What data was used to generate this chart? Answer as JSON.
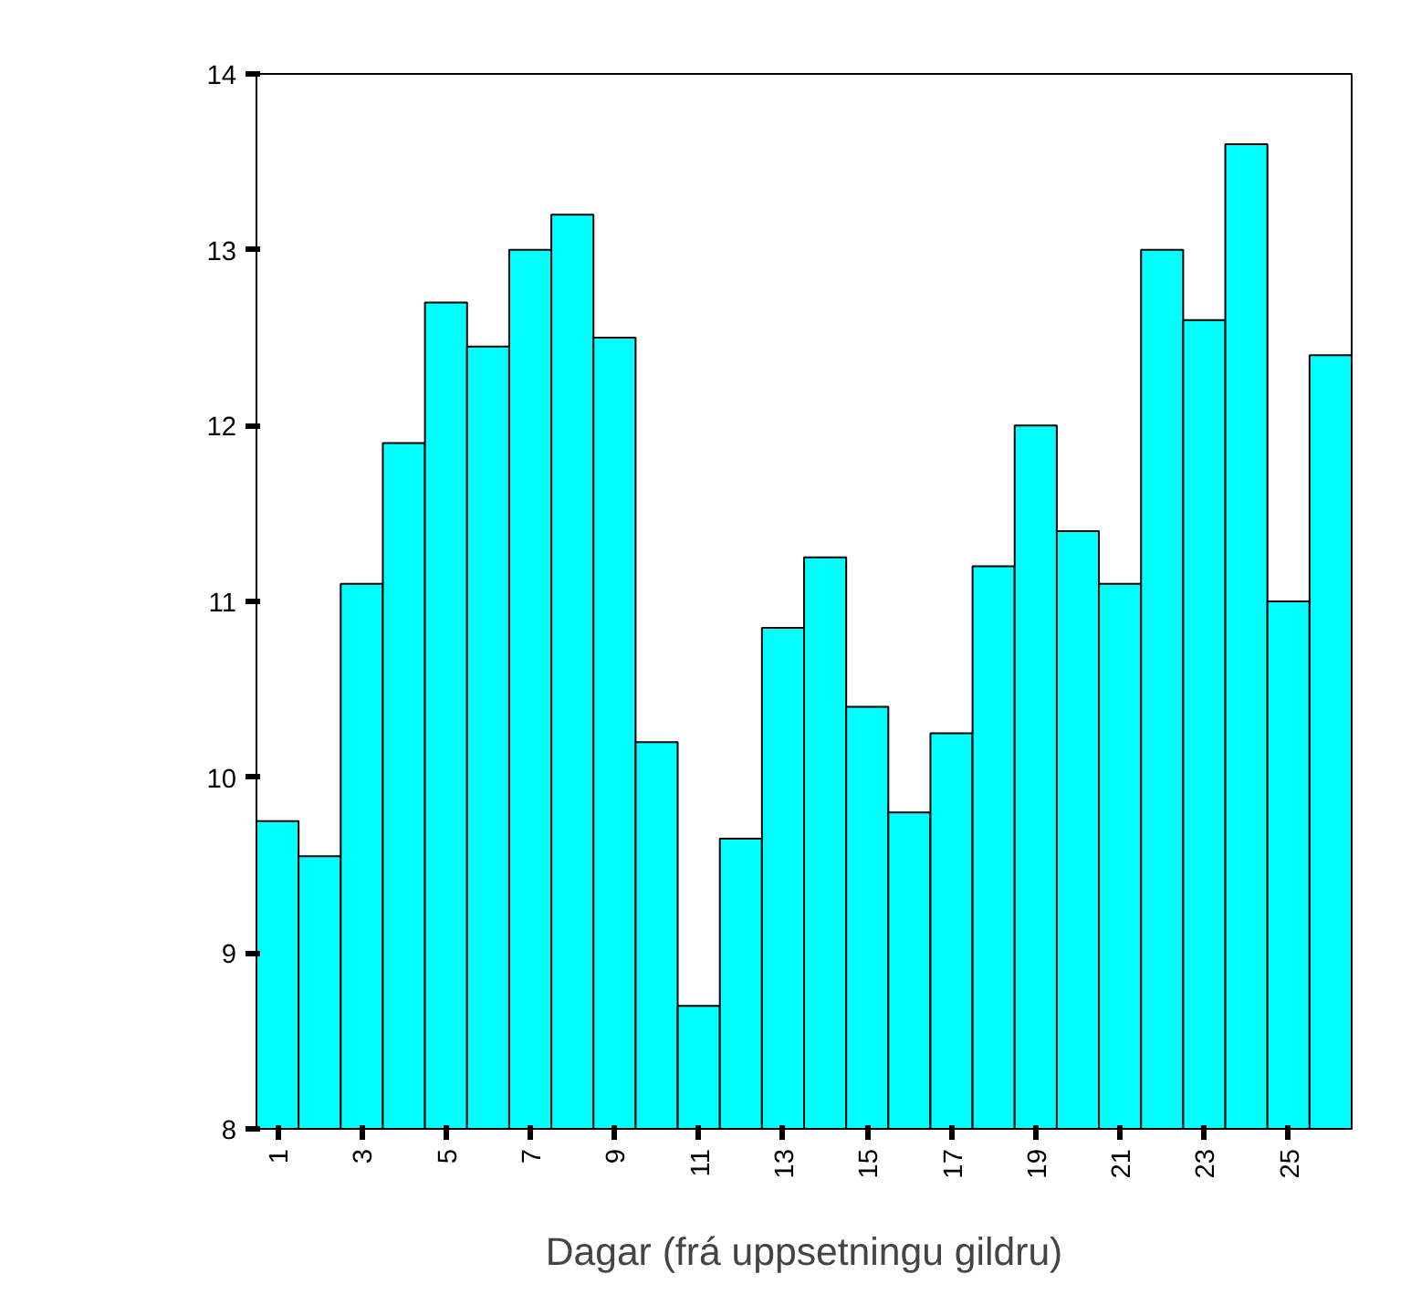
{
  "chart_data": {
    "type": "bar",
    "xlabel": "Dagar (frá uppsetningu gildru)",
    "categories": [
      "1",
      null,
      "3",
      null,
      "5",
      null,
      "7",
      null,
      "9",
      null,
      "11",
      null,
      "13",
      null,
      "15",
      null,
      "17",
      null,
      "19",
      null,
      "21",
      null,
      "23",
      null,
      "25",
      null
    ],
    "values": [
      9.75,
      9.55,
      11.1,
      11.9,
      12.7,
      12.45,
      13.0,
      13.2,
      12.5,
      10.2,
      8.7,
      9.65,
      10.85,
      11.25,
      10.4,
      9.8,
      10.25,
      11.2,
      12.0,
      11.4,
      11.1,
      13.0,
      12.6,
      13.6,
      11.0,
      12.4
    ],
    "color": "#00ffff",
    "ylim": [
      8,
      14
    ],
    "yticks": [
      8,
      9,
      10,
      11,
      12,
      13,
      14
    ]
  }
}
